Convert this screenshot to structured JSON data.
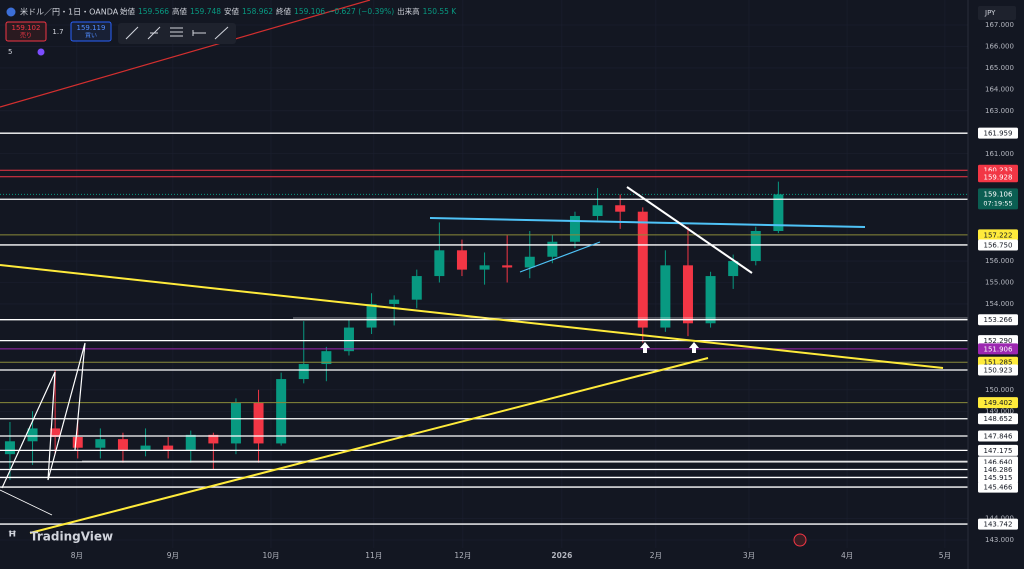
{
  "chart_data": {
    "type": "candlestick",
    "title": "米ドル／円・1日・OANDA",
    "header": {
      "open_label": "始値",
      "open": 159.566,
      "high_label": "高値",
      "high": 159.748,
      "low_label": "安値",
      "low": 158.962,
      "close_label": "終値",
      "close": 159.106,
      "change": "−0.627 (−0.39%)",
      "volume_label": "出来高",
      "volume": "150.55 K",
      "sell_price": 159.102,
      "sell_label": "売り",
      "spread": 1.7,
      "buy_price": 159.119,
      "buy_label": "買い",
      "indicator_count": 5,
      "currency": "JPY",
      "logo": "TradingView"
    },
    "up_color": "#089981",
    "down_color": "#f23645",
    "candles": [
      [
        147.0,
        148.5,
        145.8,
        147.6
      ],
      [
        147.6,
        149.0,
        146.5,
        148.2
      ],
      [
        148.2,
        150.9,
        147.0,
        147.8
      ],
      [
        147.8,
        148.6,
        146.8,
        147.3
      ],
      [
        147.3,
        148.2,
        146.8,
        147.7
      ],
      [
        147.7,
        148.0,
        146.6,
        147.2
      ],
      [
        147.2,
        148.2,
        146.9,
        147.4
      ],
      [
        147.4,
        147.8,
        146.8,
        147.2
      ],
      [
        147.2,
        148.1,
        146.6,
        147.9
      ],
      [
        147.9,
        148.0,
        146.3,
        147.5
      ],
      [
        147.5,
        149.6,
        147.0,
        149.4
      ],
      [
        149.4,
        150.0,
        146.6,
        147.5
      ],
      [
        147.5,
        150.8,
        147.4,
        150.5
      ],
      [
        150.5,
        153.2,
        150.3,
        151.2
      ],
      [
        151.2,
        152.0,
        150.4,
        151.8
      ],
      [
        151.8,
        153.3,
        151.6,
        152.9
      ],
      [
        152.9,
        154.5,
        152.6,
        154.0
      ],
      [
        154.0,
        154.4,
        153.0,
        154.2
      ],
      [
        154.2,
        155.6,
        153.8,
        155.3
      ],
      [
        155.3,
        157.8,
        155.0,
        156.5
      ],
      [
        156.5,
        157.0,
        155.3,
        155.6
      ],
      [
        155.6,
        156.4,
        154.9,
        155.8
      ],
      [
        155.8,
        157.2,
        155.0,
        155.7
      ],
      [
        155.7,
        157.4,
        155.2,
        156.2
      ],
      [
        156.2,
        157.2,
        155.9,
        156.9
      ],
      [
        156.9,
        158.3,
        156.6,
        158.1
      ],
      [
        158.1,
        159.4,
        157.9,
        158.6
      ],
      [
        158.6,
        159.1,
        157.5,
        158.3
      ],
      [
        158.3,
        158.5,
        152.2,
        152.9
      ],
      [
        152.9,
        156.5,
        152.7,
        155.8
      ],
      [
        155.8,
        157.6,
        152.5,
        153.1
      ],
      [
        153.1,
        155.5,
        152.9,
        155.3
      ],
      [
        155.3,
        156.3,
        154.7,
        156.0
      ],
      [
        156.0,
        157.6,
        155.8,
        157.4
      ],
      [
        157.4,
        159.7,
        157.3,
        159.106
      ]
    ],
    "xlim": [
      -0.44,
      42.39
    ],
    "xticks": [
      {
        "value": 2.96,
        "label": "8月"
      },
      {
        "value": 7.21,
        "label": "9月"
      },
      {
        "value": 11.55,
        "label": "10月"
      },
      {
        "value": 16.1,
        "label": "11月"
      },
      {
        "value": 20.04,
        "label": "12月"
      },
      {
        "value": 24.42,
        "label": "2026"
      },
      {
        "value": 28.58,
        "label": "2月"
      },
      {
        "value": 32.7,
        "label": "3月"
      },
      {
        "value": 37.04,
        "label": "4月"
      },
      {
        "value": 41.37,
        "label": "5月"
      }
    ],
    "ylim": [
      143,
      167
    ],
    "yticks": [
      {
        "value": 143,
        "label": "143.000"
      },
      {
        "value": 144,
        "label": "144.000"
      },
      {
        "value": 149,
        "label": "149.000"
      },
      {
        "value": 150,
        "label": "150.000"
      },
      {
        "value": 154,
        "label": "154.000"
      },
      {
        "value": 155,
        "label": "155.000"
      },
      {
        "value": 156,
        "label": "156.000"
      },
      {
        "value": 161,
        "label": "161.000"
      },
      {
        "value": 163,
        "label": "163.000"
      },
      {
        "value": 164,
        "label": "164.000"
      },
      {
        "value": 165,
        "label": "165.000"
      },
      {
        "value": 166,
        "label": "166.000"
      },
      {
        "value": 167,
        "label": "167.000"
      }
    ],
    "levels": [
      {
        "price": 161.959,
        "color": "#ffffff"
      },
      {
        "price": 160.233,
        "color": "#f23645"
      },
      {
        "price": 159.928,
        "color": "#f23645"
      },
      {
        "price": 158.878,
        "color": "#ffffff"
      },
      {
        "price": 157.222,
        "color": "#ffeb3b"
      },
      {
        "price": {
          "value": 156.75,
          "label": "156.750"
        },
        "color": "#ffffff"
      },
      {
        "price": 153.266,
        "color": "#ffffff"
      },
      {
        "price": {
          "value": 152.29,
          "label": "152.290"
        },
        "color": "#ffffff"
      },
      {
        "price": 151.906,
        "color": "#9c27b0"
      },
      {
        "price": 151.285,
        "color": "#ffeb3b"
      },
      {
        "price": 150.923,
        "color": "#ffffff"
      },
      {
        "price": 149.402,
        "color": "#ffeb3b"
      },
      {
        "price": 148.652,
        "color": "#ffffff"
      },
      {
        "price": 147.846,
        "color": "#ffffff"
      },
      {
        "price": 147.175,
        "color": "#ffffff"
      },
      {
        "price": {
          "value": 146.64,
          "label": "146.640"
        },
        "color": "#ffffff"
      },
      {
        "price": 146.286,
        "color": "#ffffff"
      },
      {
        "price": 145.915,
        "color": "#ffffff"
      },
      {
        "price": 145.466,
        "color": "#ffffff"
      },
      {
        "price": 143.742,
        "color": "#ffffff"
      }
    ],
    "last_price": 159.106,
    "countdown": "07:19:55"
  }
}
